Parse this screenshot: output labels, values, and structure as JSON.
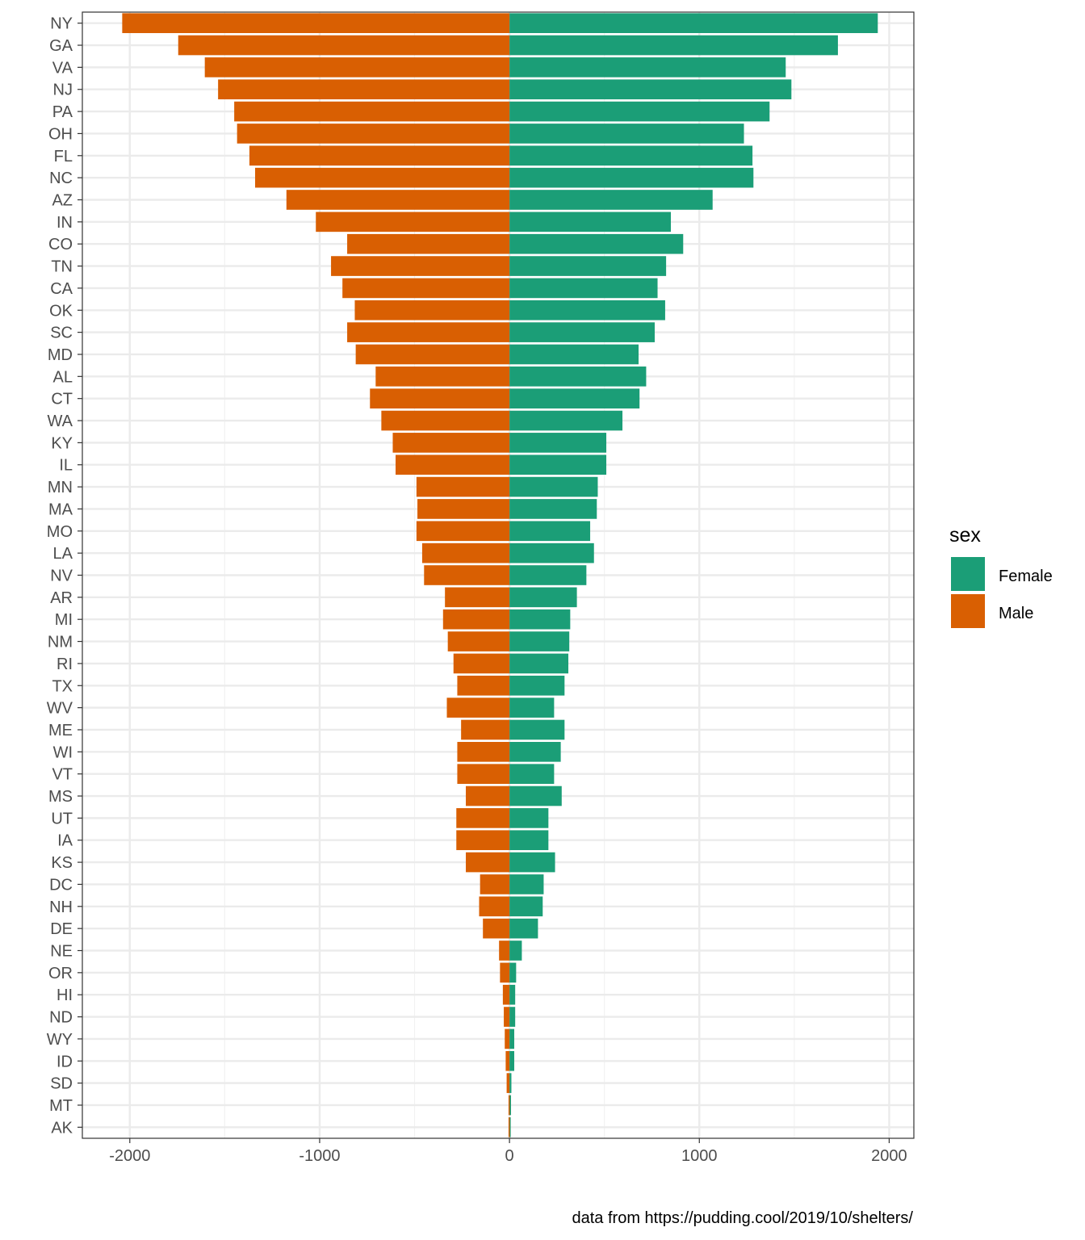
{
  "chart_data": {
    "type": "bar",
    "orientation": "horizontal",
    "stacking": "diverging",
    "categories": [
      "NY",
      "GA",
      "VA",
      "NJ",
      "PA",
      "OH",
      "FL",
      "NC",
      "AZ",
      "IN",
      "CO",
      "TN",
      "CA",
      "OK",
      "SC",
      "MD",
      "AL",
      "CT",
      "WA",
      "KY",
      "IL",
      "MN",
      "MA",
      "MO",
      "LA",
      "NV",
      "AR",
      "MI",
      "NM",
      "RI",
      "TX",
      "WV",
      "ME",
      "WI",
      "VT",
      "MS",
      "UT",
      "IA",
      "KS",
      "DC",
      "NH",
      "DE",
      "NE",
      "OR",
      "HI",
      "ND",
      "WY",
      "ID",
      "SD",
      "MT",
      "AK"
    ],
    "series": [
      {
        "name": "Female",
        "color": "#1b9e77",
        "values": [
          1940,
          1730,
          1455,
          1485,
          1370,
          1235,
          1280,
          1285,
          1070,
          850,
          915,
          825,
          780,
          820,
          765,
          680,
          720,
          685,
          595,
          510,
          510,
          465,
          460,
          425,
          445,
          405,
          355,
          320,
          315,
          310,
          290,
          235,
          290,
          270,
          235,
          275,
          205,
          205,
          240,
          180,
          175,
          150,
          65,
          35,
          30,
          30,
          25,
          25,
          10,
          8,
          5
        ]
      },
      {
        "name": "Male",
        "color": "#d95f02",
        "values": [
          -2040,
          -1745,
          -1605,
          -1535,
          -1450,
          -1435,
          -1370,
          -1340,
          -1175,
          -1020,
          -855,
          -940,
          -880,
          -815,
          -855,
          -810,
          -705,
          -735,
          -675,
          -615,
          -600,
          -490,
          -485,
          -490,
          -460,
          -450,
          -340,
          -350,
          -325,
          -295,
          -275,
          -330,
          -255,
          -275,
          -275,
          -230,
          -280,
          -280,
          -230,
          -155,
          -160,
          -140,
          -55,
          -50,
          -35,
          -30,
          -25,
          -20,
          -15,
          -5,
          -5
        ]
      }
    ],
    "xlim": [
      -2250,
      2130
    ],
    "xticks": [
      -2000,
      -1000,
      0,
      1000,
      2000
    ],
    "xtick_labels": [
      "-2000",
      "-1000",
      "0",
      "1000",
      "2000"
    ],
    "xlabel": "",
    "ylabel": "",
    "grid": true,
    "legend": {
      "title": "sex",
      "position": "right",
      "entries": [
        "Female",
        "Male"
      ]
    },
    "caption": "data from https://pudding.cool/2019/10/shelters/"
  }
}
